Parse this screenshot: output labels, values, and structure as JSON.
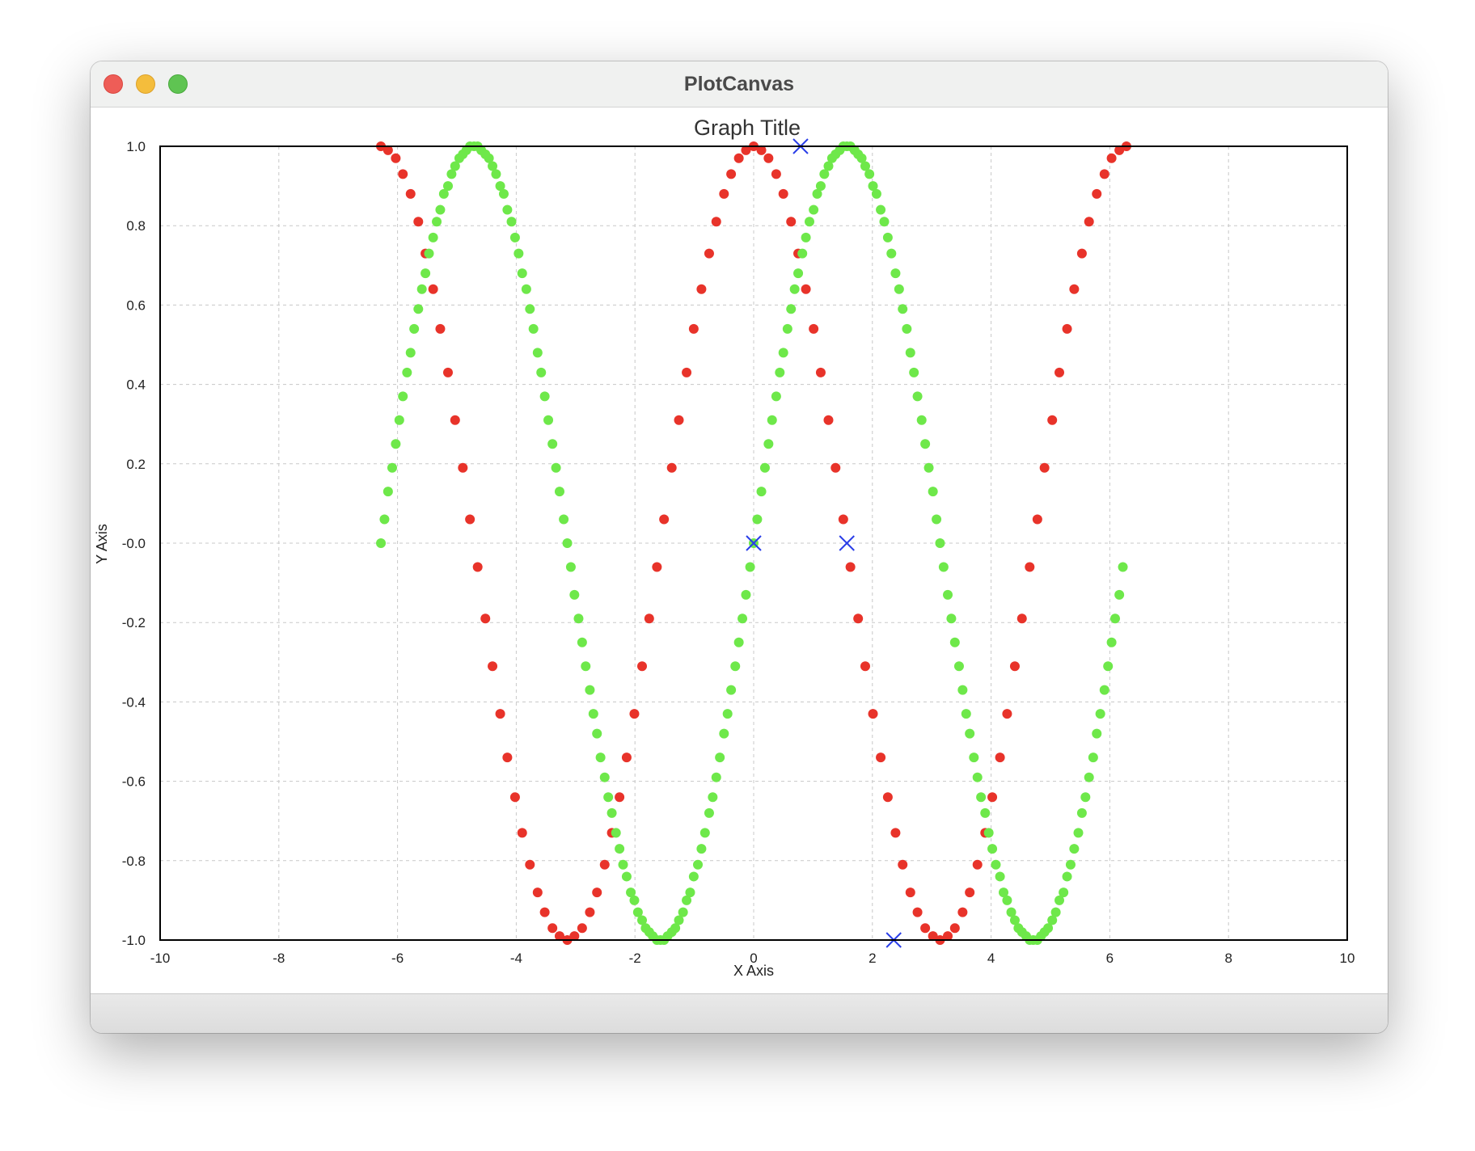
{
  "window": {
    "title": "PlotCanvas"
  },
  "chart_data": {
    "type": "scatter",
    "title": "Graph Title",
    "xlabel": "X Axis",
    "ylabel": "Y Axis",
    "xlim": [
      -10,
      10
    ],
    "ylim": [
      -1.0,
      1.0
    ],
    "xticks": [
      -10,
      -8,
      -6,
      -4,
      -2,
      0,
      2,
      4,
      6,
      8,
      10
    ],
    "xtick_labels": [
      "-10",
      "-8",
      "-6",
      "-4",
      "-2",
      "0",
      "2",
      "4",
      "6",
      "8",
      "10"
    ],
    "yticks": [
      1.0,
      0.8,
      0.6,
      0.4,
      0.2,
      0.0,
      -0.2,
      -0.4,
      -0.6,
      -0.8,
      -1.0
    ],
    "ytick_labels": [
      "1.0",
      "0.8",
      "0.6",
      "0.4",
      "0.2",
      "-0.0",
      "-0.2",
      "-0.4",
      "-0.6",
      "-0.8",
      "-1.0"
    ],
    "grid": true,
    "series": [
      {
        "marker": "circle",
        "color": "#e8332a",
        "x": [
          -6.28,
          -6.16,
          -6.03,
          -5.91,
          -5.78,
          -5.65,
          -5.53,
          -5.4,
          -5.28,
          -5.15,
          -5.03,
          -4.9,
          -4.78,
          -4.65,
          -4.52,
          -4.4,
          -4.27,
          -4.15,
          -4.02,
          -3.9,
          -3.77,
          -3.64,
          -3.52,
          -3.39,
          -3.27,
          -3.14,
          -3.02,
          -2.89,
          -2.76,
          -2.64,
          -2.51,
          -2.39,
          -2.26,
          -2.14,
          -2.01,
          -1.88,
          -1.76,
          -1.63,
          -1.51,
          -1.38,
          -1.26,
          -1.13,
          -1.01,
          -0.88,
          -0.75,
          -0.63,
          -0.5,
          -0.38,
          -0.25,
          -0.13,
          0.0,
          0.13,
          0.25,
          0.38,
          0.5,
          0.63,
          0.75,
          0.88,
          1.01,
          1.13,
          1.26,
          1.38,
          1.51,
          1.63,
          1.76,
          1.88,
          2.01,
          2.14,
          2.26,
          2.39,
          2.51,
          2.64,
          2.76,
          2.89,
          3.02,
          3.14,
          3.27,
          3.39,
          3.52,
          3.64,
          3.77,
          3.9,
          4.02,
          4.15,
          4.27,
          4.4,
          4.52,
          4.65,
          4.78,
          4.9,
          5.03,
          5.15,
          5.28,
          5.4,
          5.53,
          5.65,
          5.78,
          5.91,
          6.03,
          6.16,
          6.28
        ],
        "y": [
          1.0,
          0.99,
          0.97,
          0.93,
          0.88,
          0.81,
          0.73,
          0.64,
          0.54,
          0.43,
          0.31,
          0.19,
          0.06,
          -0.06,
          -0.19,
          -0.31,
          -0.43,
          -0.54,
          -0.64,
          -0.73,
          -0.81,
          -0.88,
          -0.93,
          -0.97,
          -0.99,
          -1.0,
          -0.99,
          -0.97,
          -0.93,
          -0.88,
          -0.81,
          -0.73,
          -0.64,
          -0.54,
          -0.43,
          -0.31,
          -0.19,
          -0.06,
          0.06,
          0.19,
          0.31,
          0.43,
          0.54,
          0.64,
          0.73,
          0.81,
          0.88,
          0.93,
          0.97,
          0.99,
          1.0,
          0.99,
          0.97,
          0.93,
          0.88,
          0.81,
          0.73,
          0.64,
          0.54,
          0.43,
          0.31,
          0.19,
          0.06,
          -0.06,
          -0.19,
          -0.31,
          -0.43,
          -0.54,
          -0.64,
          -0.73,
          -0.81,
          -0.88,
          -0.93,
          -0.97,
          -0.99,
          -1.0,
          -0.99,
          -0.97,
          -0.93,
          -0.88,
          -0.81,
          -0.73,
          -0.64,
          -0.54,
          -0.43,
          -0.31,
          -0.19,
          -0.06,
          0.06,
          0.19,
          0.31,
          0.43,
          0.54,
          0.64,
          0.73,
          0.81,
          0.88,
          0.93,
          0.97,
          0.99,
          1.0
        ]
      },
      {
        "marker": "circle",
        "color": "#6ee84a",
        "x": [
          -6.28,
          -6.22,
          -6.16,
          -6.09,
          -6.03,
          -5.97,
          -5.91,
          -5.84,
          -5.78,
          -5.72,
          -5.65,
          -5.59,
          -5.53,
          -5.47,
          -5.4,
          -5.34,
          -5.28,
          -5.22,
          -5.15,
          -5.09,
          -5.03,
          -4.96,
          -4.9,
          -4.84,
          -4.78,
          -4.71,
          -4.65,
          -4.59,
          -4.52,
          -4.46,
          -4.4,
          -4.34,
          -4.27,
          -4.21,
          -4.15,
          -4.08,
          -4.02,
          -3.96,
          -3.9,
          -3.83,
          -3.77,
          -3.71,
          -3.64,
          -3.58,
          -3.52,
          -3.46,
          -3.39,
          -3.33,
          -3.27,
          -3.2,
          -3.14,
          -3.08,
          -3.02,
          -2.95,
          -2.89,
          -2.83,
          -2.76,
          -2.7,
          -2.64,
          -2.58,
          -2.51,
          -2.45,
          -2.39,
          -2.32,
          -2.26,
          -2.2,
          -2.14,
          -2.07,
          -2.01,
          -1.95,
          -1.88,
          -1.82,
          -1.76,
          -1.7,
          -1.63,
          -1.57,
          -1.51,
          -1.45,
          -1.38,
          -1.32,
          -1.26,
          -1.19,
          -1.13,
          -1.07,
          -1.01,
          -0.94,
          -0.88,
          -0.82,
          -0.75,
          -0.69,
          -0.63,
          -0.57,
          -0.5,
          -0.44,
          -0.38,
          -0.31,
          -0.25,
          -0.19,
          -0.13,
          -0.06,
          0.0,
          0.06,
          0.13,
          0.19,
          0.25,
          0.31,
          0.38,
          0.44,
          0.5,
          0.57,
          0.63,
          0.69,
          0.75,
          0.82,
          0.88,
          0.94,
          1.01,
          1.07,
          1.13,
          1.19,
          1.26,
          1.32,
          1.38,
          1.45,
          1.51,
          1.57,
          1.63,
          1.7,
          1.76,
          1.82,
          1.88,
          1.95,
          2.01,
          2.07,
          2.14,
          2.2,
          2.26,
          2.32,
          2.39,
          2.45,
          2.51,
          2.58,
          2.64,
          2.7,
          2.76,
          2.83,
          2.89,
          2.95,
          3.02,
          3.08,
          3.14,
          3.2,
          3.27,
          3.33,
          3.39,
          3.46,
          3.52,
          3.58,
          3.64,
          3.71,
          3.77,
          3.83,
          3.9,
          3.96,
          4.02,
          4.08,
          4.15,
          4.21,
          4.27,
          4.34,
          4.4,
          4.46,
          4.52,
          4.59,
          4.65,
          4.71,
          4.78,
          4.84,
          4.9,
          4.96,
          5.03,
          5.09,
          5.15,
          5.22,
          5.28,
          5.34,
          5.4,
          5.47,
          5.53,
          5.59,
          5.65,
          5.72,
          5.78,
          5.84,
          5.91,
          5.97,
          6.03,
          6.09,
          6.16,
          6.22
        ],
        "y": [
          0.0,
          0.06,
          0.13,
          0.19,
          0.25,
          0.31,
          0.37,
          0.43,
          0.48,
          0.54,
          0.59,
          0.64,
          0.68,
          0.73,
          0.77,
          0.81,
          0.84,
          0.88,
          0.9,
          0.93,
          0.95,
          0.97,
          0.98,
          0.99,
          1.0,
          1.0,
          1.0,
          0.99,
          0.98,
          0.97,
          0.95,
          0.93,
          0.9,
          0.88,
          0.84,
          0.81,
          0.77,
          0.73,
          0.68,
          0.64,
          0.59,
          0.54,
          0.48,
          0.43,
          0.37,
          0.31,
          0.25,
          0.19,
          0.13,
          0.06,
          0.0,
          -0.06,
          -0.13,
          -0.19,
          -0.25,
          -0.31,
          -0.37,
          -0.43,
          -0.48,
          -0.54,
          -0.59,
          -0.64,
          -0.68,
          -0.73,
          -0.77,
          -0.81,
          -0.84,
          -0.88,
          -0.9,
          -0.93,
          -0.95,
          -0.97,
          -0.98,
          -0.99,
          -1.0,
          -1.0,
          -1.0,
          -0.99,
          -0.98,
          -0.97,
          -0.95,
          -0.93,
          -0.9,
          -0.88,
          -0.84,
          -0.81,
          -0.77,
          -0.73,
          -0.68,
          -0.64,
          -0.59,
          -0.54,
          -0.48,
          -0.43,
          -0.37,
          -0.31,
          -0.25,
          -0.19,
          -0.13,
          -0.06,
          0.0,
          0.06,
          0.13,
          0.19,
          0.25,
          0.31,
          0.37,
          0.43,
          0.48,
          0.54,
          0.59,
          0.64,
          0.68,
          0.73,
          0.77,
          0.81,
          0.84,
          0.88,
          0.9,
          0.93,
          0.95,
          0.97,
          0.98,
          0.99,
          1.0,
          1.0,
          1.0,
          0.99,
          0.98,
          0.97,
          0.95,
          0.93,
          0.9,
          0.88,
          0.84,
          0.81,
          0.77,
          0.73,
          0.68,
          0.64,
          0.59,
          0.54,
          0.48,
          0.43,
          0.37,
          0.31,
          0.25,
          0.19,
          0.13,
          0.06,
          0.0,
          -0.06,
          -0.13,
          -0.19,
          -0.25,
          -0.31,
          -0.37,
          -0.43,
          -0.48,
          -0.54,
          -0.59,
          -0.64,
          -0.68,
          -0.73,
          -0.77,
          -0.81,
          -0.84,
          -0.88,
          -0.9,
          -0.93,
          -0.95,
          -0.97,
          -0.98,
          -0.99,
          -1.0,
          -1.0,
          -1.0,
          -0.99,
          -0.98,
          -0.97,
          -0.95,
          -0.93,
          -0.9,
          -0.88,
          -0.84,
          -0.81,
          -0.77,
          -0.73,
          -0.68,
          -0.64,
          -0.59,
          -0.54,
          -0.48,
          -0.43,
          -0.37,
          -0.31,
          -0.25,
          -0.19,
          -0.13,
          -0.06
        ]
      },
      {
        "marker": "x",
        "color": "#2a3ee8",
        "x": [
          0.0,
          0.79,
          1.57,
          2.36
        ],
        "y": [
          0.0,
          1.0,
          0.0,
          -1.0
        ]
      }
    ]
  }
}
